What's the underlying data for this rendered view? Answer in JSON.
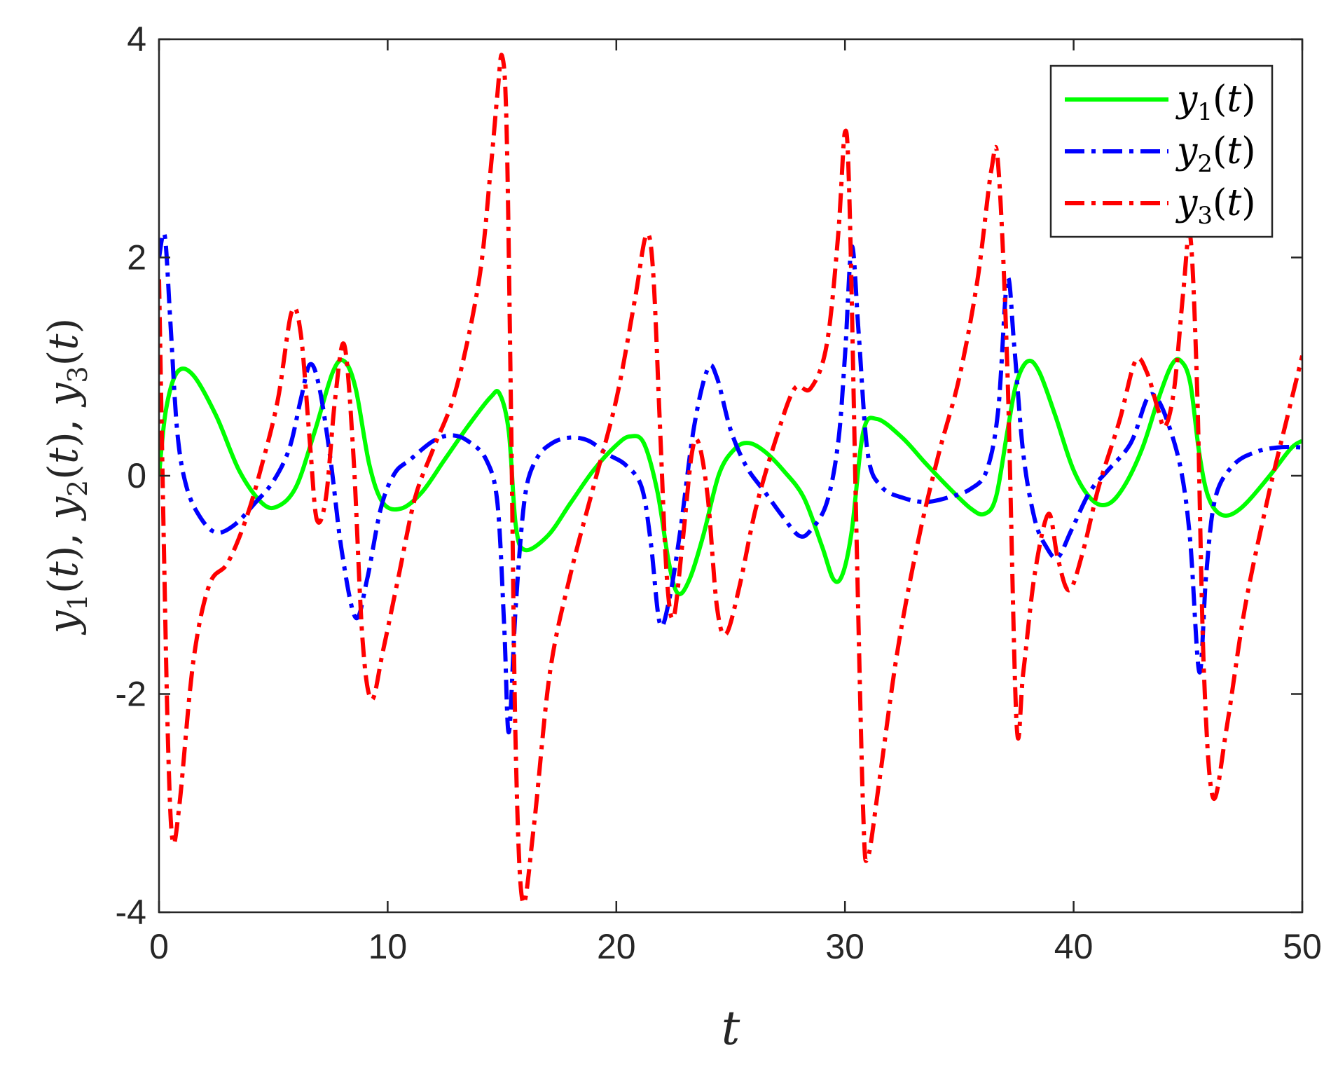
{
  "chart_data": {
    "type": "line",
    "xlabel": "t",
    "ylabel": "y1(t), y2(t), y3(t)",
    "xlim": [
      0,
      50
    ],
    "ylim": [
      -4,
      4
    ],
    "x_ticks": [
      "0",
      "10",
      "20",
      "30",
      "40",
      "50"
    ],
    "y_ticks": [
      "-4",
      "-2",
      "0",
      "2",
      "4"
    ],
    "grid": false,
    "legend_position": "top-right",
    "series": [
      {
        "name": "y1(t)",
        "color": "#00ff00",
        "style": "solid",
        "points": [
          [
            0,
            0
          ],
          [
            0.3,
            0.6
          ],
          [
            0.8,
            0.95
          ],
          [
            1.5,
            0.92
          ],
          [
            2.5,
            0.55
          ],
          [
            3.5,
            0.05
          ],
          [
            4.5,
            -0.25
          ],
          [
            5.2,
            -0.28
          ],
          [
            6,
            -0.1
          ],
          [
            6.8,
            0.4
          ],
          [
            7.6,
            0.95
          ],
          [
            8.1,
            1.05
          ],
          [
            8.6,
            0.8
          ],
          [
            9.2,
            0.1
          ],
          [
            9.8,
            -0.25
          ],
          [
            10.6,
            -0.3
          ],
          [
            11.5,
            -0.15
          ],
          [
            12.5,
            0.15
          ],
          [
            13.5,
            0.45
          ],
          [
            14.5,
            0.72
          ],
          [
            14.9,
            0.75
          ],
          [
            15.3,
            0.4
          ],
          [
            15.6,
            -0.45
          ],
          [
            16,
            -0.68
          ],
          [
            17,
            -0.55
          ],
          [
            18,
            -0.25
          ],
          [
            19,
            0.05
          ],
          [
            20,
            0.28
          ],
          [
            20.6,
            0.36
          ],
          [
            21.2,
            0.3
          ],
          [
            21.8,
            -0.15
          ],
          [
            22.3,
            -0.8
          ],
          [
            22.7,
            -1.08
          ],
          [
            23.2,
            -0.95
          ],
          [
            23.8,
            -0.55
          ],
          [
            24.5,
            0.02
          ],
          [
            25.2,
            0.25
          ],
          [
            25.8,
            0.3
          ],
          [
            26.5,
            0.22
          ],
          [
            27.3,
            0.05
          ],
          [
            28.2,
            -0.2
          ],
          [
            29,
            -0.65
          ],
          [
            29.5,
            -0.95
          ],
          [
            29.9,
            -0.9
          ],
          [
            30.3,
            -0.5
          ],
          [
            30.8,
            0.4
          ],
          [
            31.4,
            0.52
          ],
          [
            32.5,
            0.35
          ],
          [
            33.5,
            0.12
          ],
          [
            34.5,
            -0.1
          ],
          [
            35.5,
            -0.3
          ],
          [
            36.1,
            -0.35
          ],
          [
            36.6,
            -0.2
          ],
          [
            37.1,
            0.4
          ],
          [
            37.5,
            0.85
          ],
          [
            38,
            1.05
          ],
          [
            38.5,
            0.95
          ],
          [
            39.2,
            0.55
          ],
          [
            40,
            0.05
          ],
          [
            40.8,
            -0.22
          ],
          [
            41.5,
            -0.26
          ],
          [
            42.2,
            -0.1
          ],
          [
            43,
            0.25
          ],
          [
            43.7,
            0.7
          ],
          [
            44.3,
            1.02
          ],
          [
            44.7,
            1.05
          ],
          [
            45.1,
            0.85
          ],
          [
            45.5,
            0.2
          ],
          [
            45.9,
            -0.2
          ],
          [
            46.5,
            -0.36
          ],
          [
            47.3,
            -0.3
          ],
          [
            48.5,
            -0.02
          ],
          [
            49.5,
            0.25
          ],
          [
            50,
            0.32
          ]
        ]
      },
      {
        "name": "y2(t)",
        "color": "#0000ff",
        "style": "dash-dot",
        "points": [
          [
            0,
            2.0
          ],
          [
            0.25,
            2.2
          ],
          [
            0.5,
            1.4
          ],
          [
            0.8,
            0.4
          ],
          [
            1.2,
            -0.1
          ],
          [
            1.8,
            -0.38
          ],
          [
            2.5,
            -0.52
          ],
          [
            3.3,
            -0.45
          ],
          [
            4.2,
            -0.25
          ],
          [
            5,
            -0.05
          ],
          [
            5.7,
            0.25
          ],
          [
            6.2,
            0.7
          ],
          [
            6.6,
            1.02
          ],
          [
            7,
            0.82
          ],
          [
            7.5,
            0.15
          ],
          [
            8,
            -0.7
          ],
          [
            8.6,
            -1.3
          ],
          [
            9.1,
            -0.95
          ],
          [
            9.7,
            -0.3
          ],
          [
            10.3,
            0.02
          ],
          [
            11,
            0.15
          ],
          [
            12,
            0.32
          ],
          [
            12.8,
            0.37
          ],
          [
            13.5,
            0.32
          ],
          [
            14.3,
            0.15
          ],
          [
            14.8,
            -0.25
          ],
          [
            15.1,
            -1.4
          ],
          [
            15.3,
            -2.35
          ],
          [
            15.6,
            -1.2
          ],
          [
            16,
            -0.2
          ],
          [
            16.5,
            0.15
          ],
          [
            17.2,
            0.3
          ],
          [
            18,
            0.35
          ],
          [
            18.8,
            0.32
          ],
          [
            19.6,
            0.2
          ],
          [
            20.4,
            0.1
          ],
          [
            21.1,
            -0.1
          ],
          [
            21.5,
            -0.6
          ],
          [
            21.9,
            -1.35
          ],
          [
            22.3,
            -1.15
          ],
          [
            22.8,
            -0.5
          ],
          [
            23.4,
            0.45
          ],
          [
            24,
            0.98
          ],
          [
            24.4,
            0.9
          ],
          [
            25,
            0.42
          ],
          [
            25.7,
            0.08
          ],
          [
            26.5,
            -0.15
          ],
          [
            27.3,
            -0.38
          ],
          [
            28,
            -0.55
          ],
          [
            28.5,
            -0.5
          ],
          [
            29.2,
            -0.25
          ],
          [
            29.7,
            0.3
          ],
          [
            30,
            1.1
          ],
          [
            30.3,
            2.1
          ],
          [
            30.6,
            1.3
          ],
          [
            31,
            0.2
          ],
          [
            31.6,
            -0.1
          ],
          [
            32.5,
            -0.2
          ],
          [
            33.5,
            -0.24
          ],
          [
            34.5,
            -0.2
          ],
          [
            35.5,
            -0.12
          ],
          [
            36.2,
            0.05
          ],
          [
            36.7,
            0.6
          ],
          [
            37.1,
            1.8
          ],
          [
            37.4,
            1.2
          ],
          [
            37.8,
            0.2
          ],
          [
            38.3,
            -0.4
          ],
          [
            38.8,
            -0.65
          ],
          [
            39.3,
            -0.75
          ],
          [
            39.9,
            -0.5
          ],
          [
            40.7,
            -0.15
          ],
          [
            41.5,
            0.05
          ],
          [
            42.5,
            0.3
          ],
          [
            43.2,
            0.7
          ],
          [
            43.6,
            0.72
          ],
          [
            44.1,
            0.5
          ],
          [
            44.7,
            0.05
          ],
          [
            45.1,
            -0.6
          ],
          [
            45.5,
            -1.8
          ],
          [
            45.8,
            -0.9
          ],
          [
            46.2,
            -0.2
          ],
          [
            47,
            0.1
          ],
          [
            48,
            0.22
          ],
          [
            49,
            0.26
          ],
          [
            50,
            0.26
          ]
        ]
      },
      {
        "name": "y3(t)",
        "color": "#ff0000",
        "style": "dash-dot",
        "points": [
          [
            0,
            1.8
          ],
          [
            0.2,
            -0.5
          ],
          [
            0.4,
            -2.5
          ],
          [
            0.6,
            -3.35
          ],
          [
            0.9,
            -3.0
          ],
          [
            1.5,
            -1.7
          ],
          [
            2.2,
            -1.0
          ],
          [
            3,
            -0.8
          ],
          [
            3.8,
            -0.4
          ],
          [
            4.5,
            0.1
          ],
          [
            5.2,
            0.7
          ],
          [
            5.8,
            1.5
          ],
          [
            6.2,
            1.3
          ],
          [
            6.6,
            0.3
          ],
          [
            6.9,
            -0.4
          ],
          [
            7.3,
            -0.2
          ],
          [
            7.7,
            0.7
          ],
          [
            8.1,
            1.2
          ],
          [
            8.5,
            0.2
          ],
          [
            8.9,
            -1.5
          ],
          [
            9.3,
            -2.05
          ],
          [
            9.8,
            -1.6
          ],
          [
            10.5,
            -0.9
          ],
          [
            11.2,
            -0.2
          ],
          [
            12,
            0.25
          ],
          [
            13,
            0.8
          ],
          [
            14,
            1.8
          ],
          [
            14.5,
            2.8
          ],
          [
            14.8,
            3.5
          ],
          [
            15,
            3.85
          ],
          [
            15.2,
            3.2
          ],
          [
            15.4,
            0.5
          ],
          [
            15.6,
            -2.5
          ],
          [
            15.9,
            -3.9
          ],
          [
            16.4,
            -3.2
          ],
          [
            17.1,
            -1.8
          ],
          [
            18,
            -0.9
          ],
          [
            19,
            -0.1
          ],
          [
            20,
            0.7
          ],
          [
            20.8,
            1.6
          ],
          [
            21.3,
            2.2
          ],
          [
            21.6,
            1.9
          ],
          [
            21.9,
            0.5
          ],
          [
            22.2,
            -0.9
          ],
          [
            22.5,
            -1.3
          ],
          [
            22.9,
            -0.6
          ],
          [
            23.3,
            0.2
          ],
          [
            23.6,
            0.3
          ],
          [
            24,
            -0.2
          ],
          [
            24.4,
            -1.2
          ],
          [
            24.8,
            -1.45
          ],
          [
            25.4,
            -1.0
          ],
          [
            26.1,
            -0.3
          ],
          [
            27,
            0.35
          ],
          [
            27.8,
            0.8
          ],
          [
            28.5,
            0.8
          ],
          [
            29.2,
            1.2
          ],
          [
            29.7,
            2.2
          ],
          [
            30,
            3.15
          ],
          [
            30.2,
            2.5
          ],
          [
            30.5,
            -0.5
          ],
          [
            30.8,
            -3.1
          ],
          [
            31,
            -3.5
          ],
          [
            31.5,
            -2.8
          ],
          [
            32.3,
            -1.6
          ],
          [
            33.2,
            -0.6
          ],
          [
            34.1,
            0.2
          ],
          [
            35,
            0.9
          ],
          [
            35.8,
            1.8
          ],
          [
            36.4,
            2.8
          ],
          [
            36.7,
            2.85
          ],
          [
            37.1,
            1.0
          ],
          [
            37.5,
            -2.25
          ],
          [
            37.8,
            -1.8
          ],
          [
            38.3,
            -0.9
          ],
          [
            38.9,
            -0.35
          ],
          [
            39.3,
            -0.75
          ],
          [
            39.8,
            -1.05
          ],
          [
            40.4,
            -0.7
          ],
          [
            41.1,
            -0.1
          ],
          [
            42,
            0.5
          ],
          [
            42.7,
            1.05
          ],
          [
            43.2,
            0.95
          ],
          [
            43.7,
            0.6
          ],
          [
            44,
            0.45
          ],
          [
            44.4,
            0.8
          ],
          [
            44.8,
            1.7
          ],
          [
            45.1,
            2.2
          ],
          [
            45.4,
            0.8
          ],
          [
            45.7,
            -1.8
          ],
          [
            46.1,
            -2.95
          ],
          [
            46.7,
            -2.3
          ],
          [
            47.5,
            -1.2
          ],
          [
            48.5,
            -0.2
          ],
          [
            49.3,
            0.5
          ],
          [
            50,
            1.1
          ]
        ]
      }
    ]
  }
}
